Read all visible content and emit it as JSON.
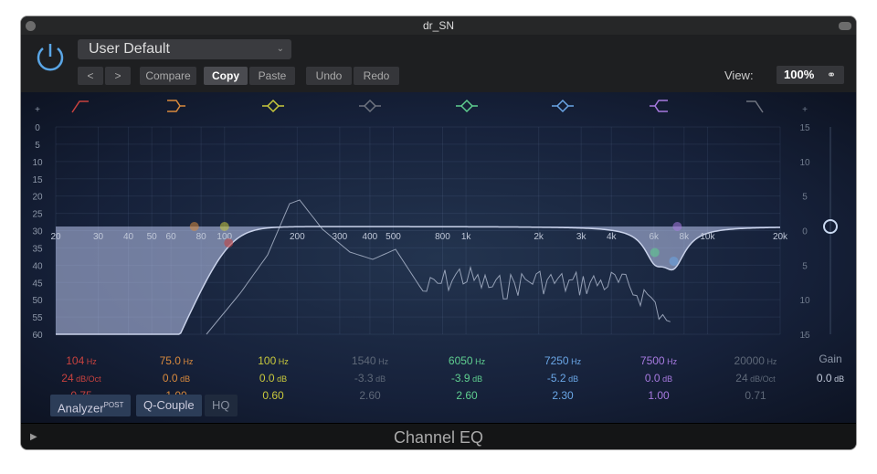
{
  "window": {
    "title": "dr_SN"
  },
  "header": {
    "preset": "User Default",
    "prev": "<",
    "next": ">",
    "compare": "Compare",
    "copy": "Copy",
    "paste": "Paste",
    "undo": "Undo",
    "redo": "Redo",
    "view_label": "View:",
    "view_value": "100%"
  },
  "graph": {
    "left_scale": [
      "+",
      "0",
      "5",
      "10",
      "15",
      "20",
      "25",
      "30",
      "35",
      "40",
      "45",
      "50",
      "55",
      "60",
      "-"
    ],
    "right_scale": [
      "+",
      "15",
      "10",
      "5",
      "0",
      "5",
      "10",
      "15",
      "-"
    ],
    "freq_labels": [
      "20",
      "30",
      "40",
      "50",
      "60",
      "80",
      "100",
      "200",
      "300",
      "400",
      "500",
      "800",
      "1k",
      "2k",
      "3k",
      "4k",
      "6k",
      "8k",
      "10k",
      "20k"
    ],
    "freq_values": [
      20,
      30,
      40,
      50,
      60,
      80,
      100,
      200,
      300,
      400,
      500,
      800,
      1000,
      2000,
      3000,
      4000,
      6000,
      8000,
      10000,
      20000
    ]
  },
  "bands": [
    {
      "type": "low-cut",
      "color": "#c8423f",
      "freq": "104",
      "freq_unit": "Hz",
      "gain": "24",
      "gain_unit": "dB/Oct",
      "q": "0.75",
      "f": 104,
      "g": 0,
      "qv": 0.75
    },
    {
      "type": "low-shelf",
      "color": "#d98a3d",
      "freq": "75.0",
      "freq_unit": "Hz",
      "gain": "0.0",
      "gain_unit": "dB",
      "q": "1.00",
      "f": 75,
      "g": 0,
      "qv": 1
    },
    {
      "type": "bell",
      "color": "#c9c93c",
      "freq": "100",
      "freq_unit": "Hz",
      "gain": "0.0",
      "gain_unit": "dB",
      "q": "0.60",
      "f": 100,
      "g": 0,
      "qv": 0.6
    },
    {
      "type": "bell",
      "color": "#6f7480",
      "freq": "1540",
      "freq_unit": "Hz",
      "gain": "-3.3",
      "gain_unit": "dB",
      "q": "2.60",
      "f": 1540,
      "g": 0,
      "qv": 2.6,
      "disabled": true
    },
    {
      "type": "bell",
      "color": "#5fcf90",
      "freq": "6050",
      "freq_unit": "Hz",
      "gain": "-3.9",
      "gain_unit": "dB",
      "q": "2.60",
      "f": 6050,
      "g": -3.9,
      "qv": 2.6
    },
    {
      "type": "bell",
      "color": "#6aa6e6",
      "freq": "7250",
      "freq_unit": "Hz",
      "gain": "-5.2",
      "gain_unit": "dB",
      "q": "2.30",
      "f": 7250,
      "g": -5.2,
      "qv": 2.3
    },
    {
      "type": "high-shelf",
      "color": "#a77ae0",
      "freq": "7500",
      "freq_unit": "Hz",
      "gain": "0.0",
      "gain_unit": "dB",
      "q": "1.00",
      "f": 7500,
      "g": 0,
      "qv": 1
    },
    {
      "type": "high-cut",
      "color": "#6f7480",
      "freq": "20000",
      "freq_unit": "Hz",
      "gain": "24",
      "gain_unit": "dB/Oct",
      "q": "0.71",
      "f": 20000,
      "g": 0,
      "qv": 0.71,
      "disabled": true
    }
  ],
  "gain": {
    "label": "Gain",
    "value": "0.0",
    "unit": "dB",
    "level_db": 0
  },
  "buttons": {
    "analyzer": "Analyzer",
    "analyzer_sup": "POST",
    "qcouple": "Q-Couple",
    "hq": "HQ"
  },
  "footer": {
    "title": "Channel EQ"
  }
}
